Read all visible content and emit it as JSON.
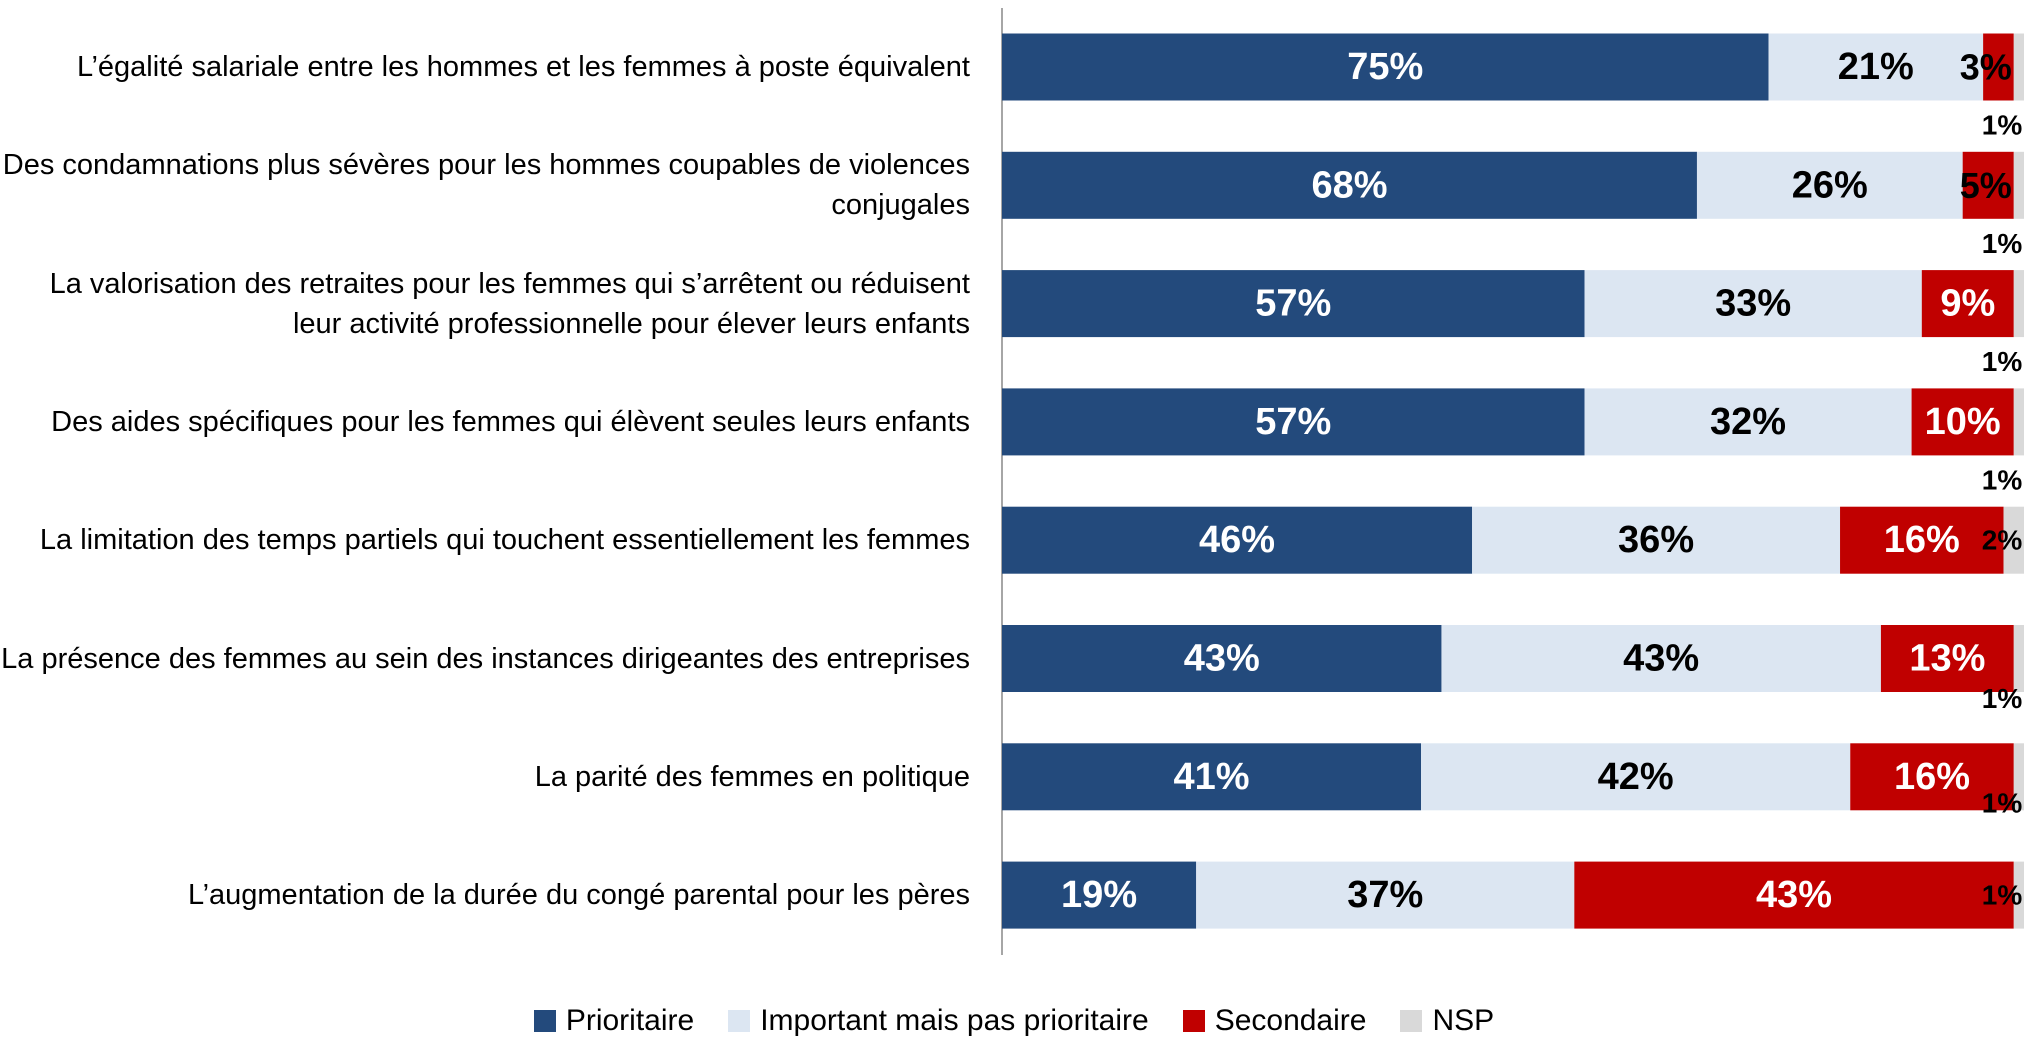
{
  "chart_data": {
    "type": "stacked-bar-horizontal",
    "categories": [
      "L’égalité salariale entre les hommes et les femmes à poste équivalent",
      "Des condamnations plus sévères pour les hommes coupables de violences conjugales",
      "La valorisation des retraites pour les femmes qui s’arrêtent ou réduisent leur activité professionnelle pour élever leurs enfants",
      "Des aides spécifiques pour les femmes qui élèvent seules leurs enfants",
      "La limitation des temps partiels qui touchent essentiellement les femmes",
      "La présence des femmes au sein des instances dirigeantes des entreprises",
      "La parité des femmes en politique",
      "L’augmentation de la durée du congé parental pour les pères"
    ],
    "series": [
      {
        "name": "Prioritaire",
        "color": "#234a7c",
        "values": [
          75,
          68,
          57,
          57,
          46,
          43,
          41,
          19
        ],
        "value_labels": [
          "75%",
          "68%",
          "57%",
          "57%",
          "46%",
          "43%",
          "41%",
          "19%"
        ]
      },
      {
        "name": "Important mais pas prioritaire",
        "color": "#dce6f2",
        "values": [
          21,
          26,
          33,
          32,
          36,
          43,
          42,
          37
        ],
        "value_labels": [
          "21%",
          "26%",
          "33%",
          "32%",
          "36%",
          "43%",
          "42%",
          "37%"
        ]
      },
      {
        "name": "Secondaire",
        "color": "#c00000",
        "values": [
          3,
          5,
          9,
          10,
          16,
          13,
          16,
          43
        ],
        "value_labels": [
          "3%",
          "5%",
          "9%",
          "10%",
          "16%",
          "13%",
          "16%",
          "43%"
        ]
      },
      {
        "name": "NSP",
        "color": "#d9d9d9",
        "values": [
          1,
          1,
          1,
          1,
          2,
          1,
          1,
          1
        ],
        "value_labels": [
          "1%",
          "1%",
          "1%",
          "1%",
          "2%",
          "1%",
          "1%",
          "1%"
        ]
      }
    ],
    "xlim": [
      0,
      100
    ],
    "legend": "bottom"
  }
}
